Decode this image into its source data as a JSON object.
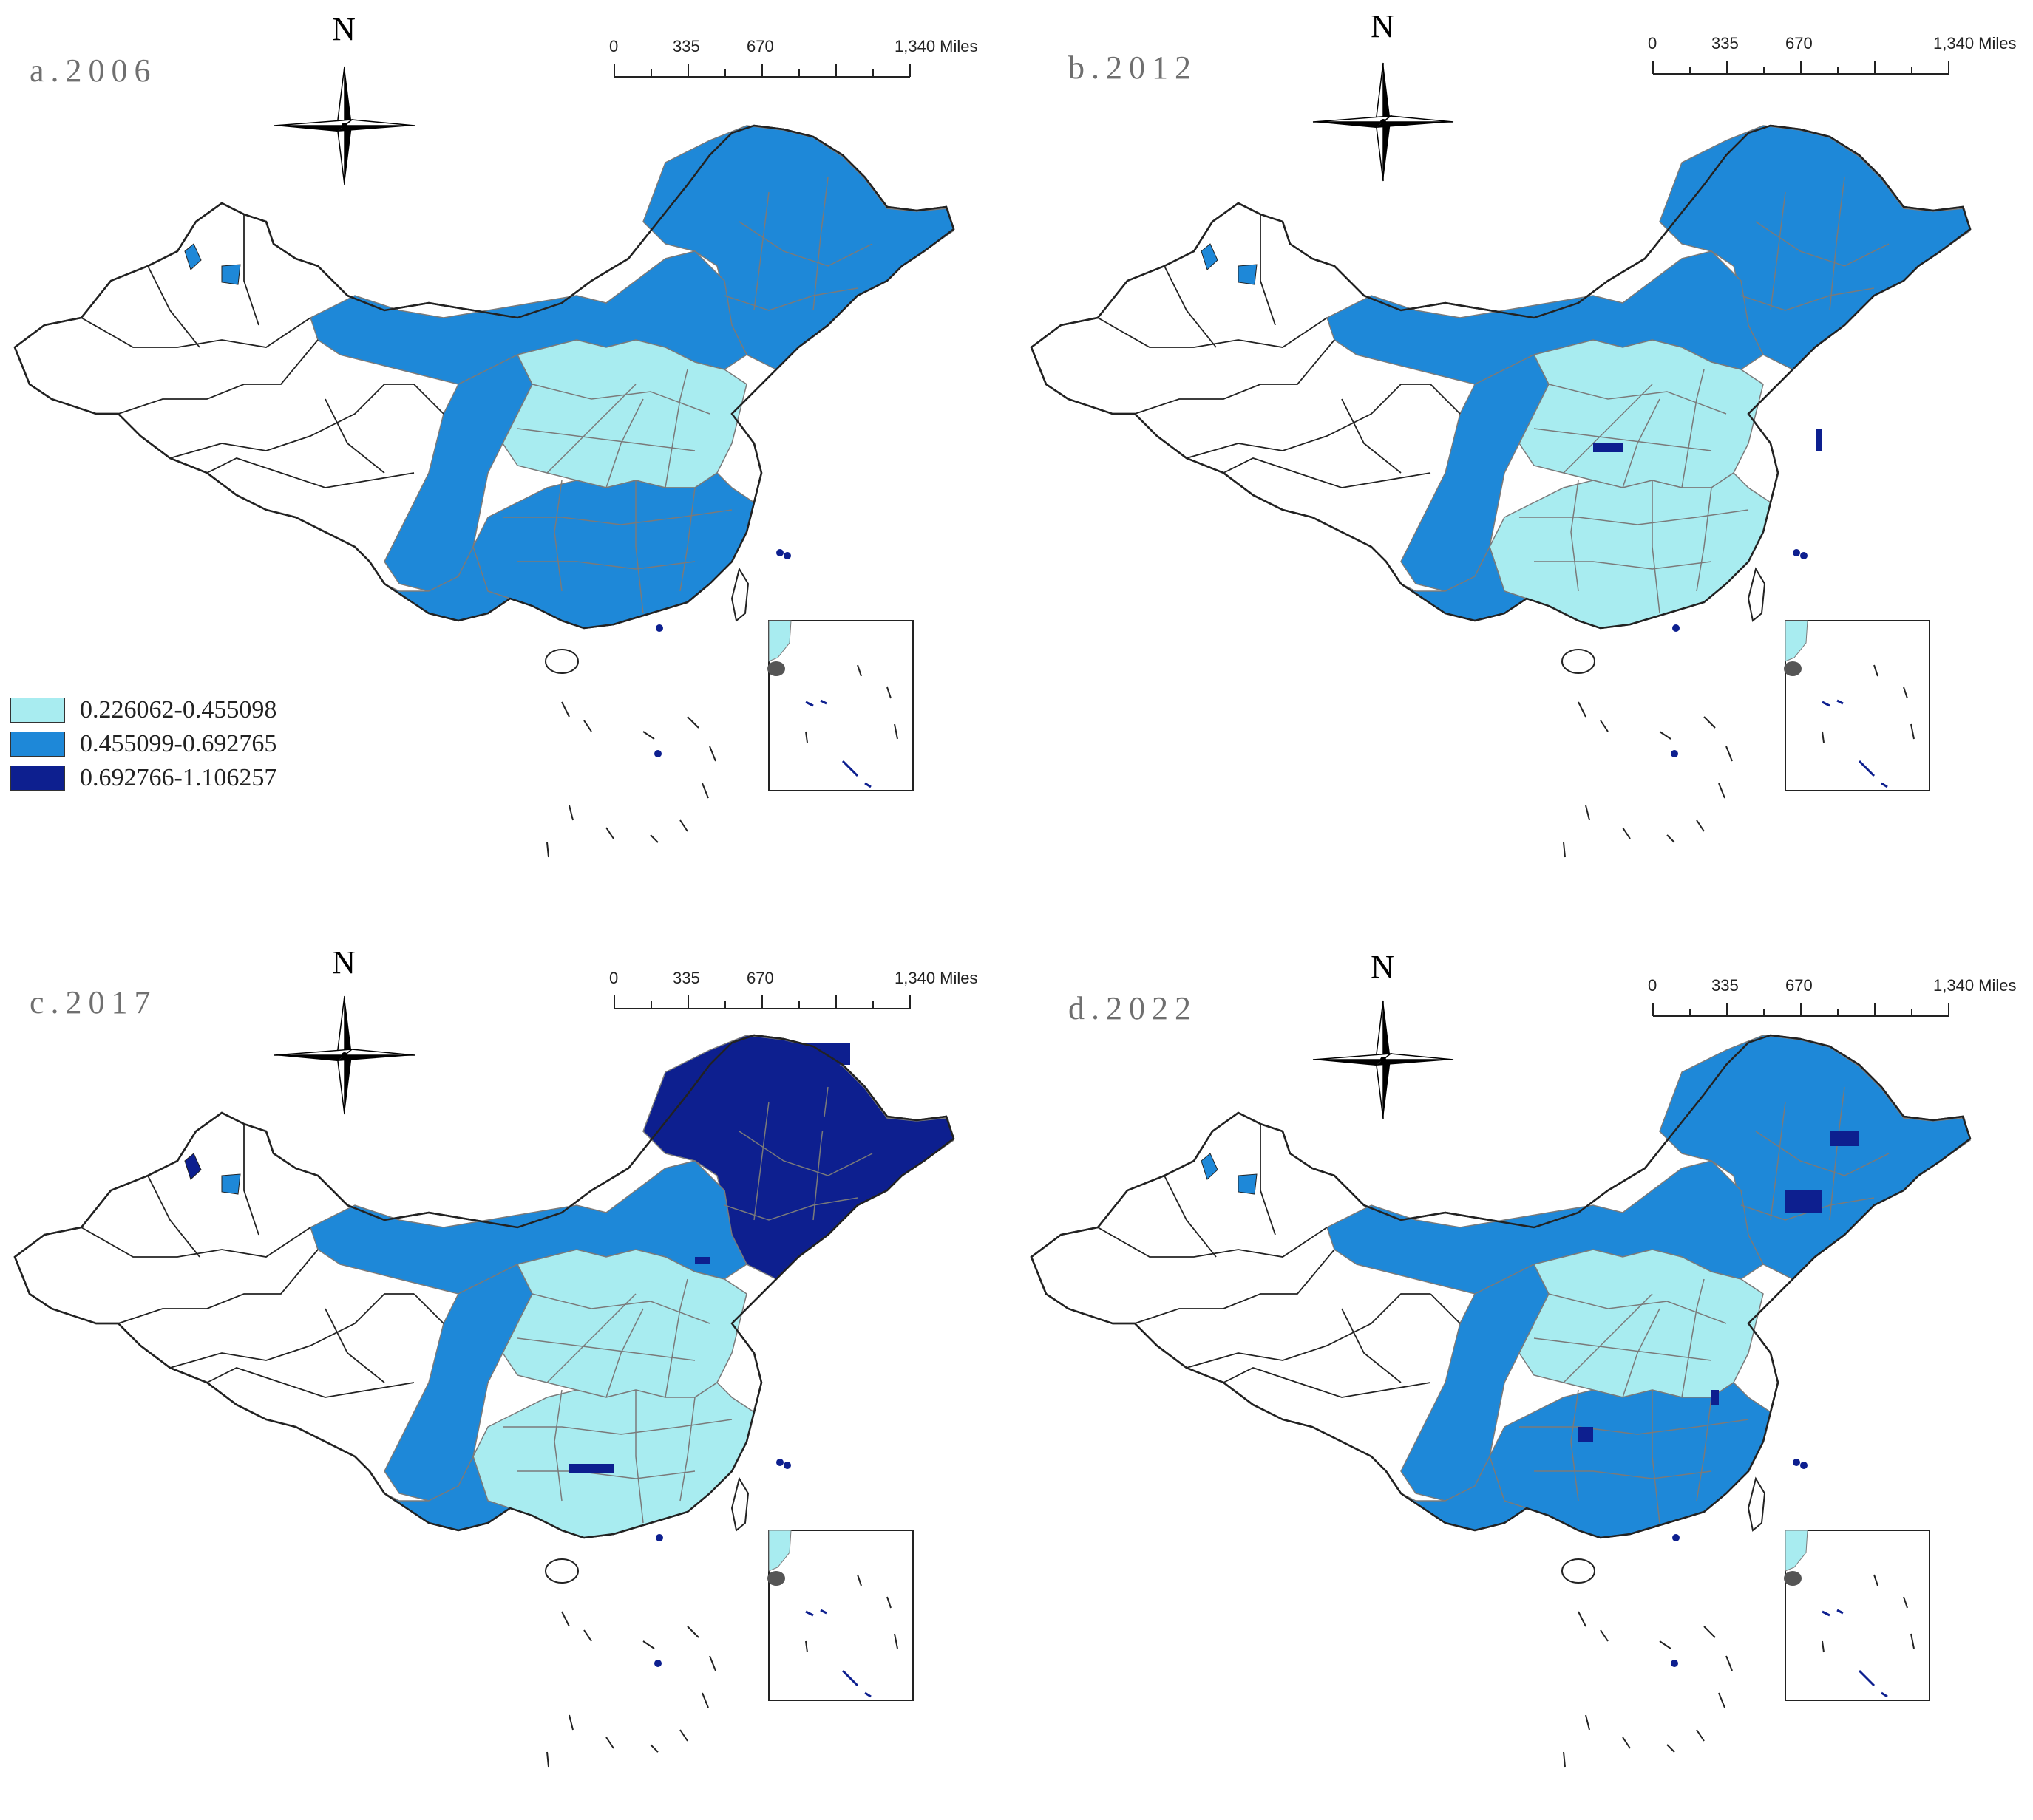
{
  "legend": {
    "items": [
      {
        "label": "0.226062-0.455098",
        "color": "#a8ecf0"
      },
      {
        "label": "0.455099-0.692765",
        "color": "#1e88d8"
      },
      {
        "label": "0.692766-1.106257",
        "color": "#0d1f8f"
      }
    ]
  },
  "north_label": "N",
  "scale": {
    "ticks": [
      "0",
      "335",
      "670",
      "1,340 Miles"
    ]
  },
  "panels": [
    {
      "title": "a.2006",
      "year": "2006"
    },
    {
      "title": "b.2012",
      "year": "2012"
    },
    {
      "title": "c.2017",
      "year": "2017"
    },
    {
      "title": "d.2022",
      "year": "2022"
    }
  ],
  "colors": {
    "outline": "#222222",
    "inner_border": "#7a7a7a",
    "unshaded": "#ffffff"
  }
}
